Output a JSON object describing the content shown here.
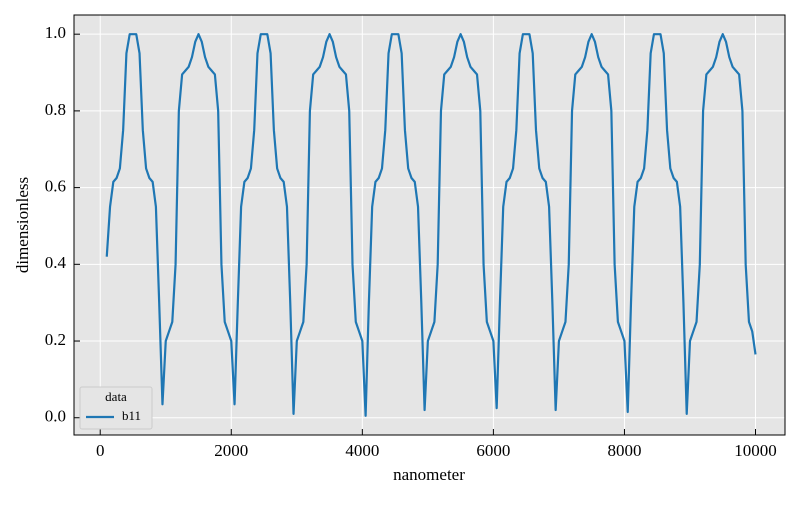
{
  "chart_data": {
    "type": "line",
    "xlabel": "nanometer",
    "ylabel": "dimensionless",
    "x": [
      100,
      150,
      200,
      250,
      300,
      350,
      400,
      450,
      500,
      550,
      600,
      650,
      700,
      750,
      800,
      850,
      900,
      950,
      1000,
      1050,
      1100,
      1150,
      1200,
      1250,
      1300,
      1350,
      1400,
      1450,
      1500,
      1550,
      1600,
      1650,
      1700,
      1750,
      1800,
      1850,
      1900,
      1950,
      2000,
      2050,
      2100,
      2150,
      2200,
      2250,
      2300,
      2350,
      2400,
      2450,
      2500,
      2550,
      2600,
      2650,
      2700,
      2750,
      2800,
      2850,
      2900,
      2950,
      3000,
      3050,
      3100,
      3150,
      3200,
      3250,
      3300,
      3350,
      3400,
      3450,
      3500,
      3550,
      3600,
      3650,
      3700,
      3750,
      3800,
      3850,
      3900,
      3950,
      4000,
      4050,
      4100,
      4150,
      4200,
      4250,
      4300,
      4350,
      4400,
      4450,
      4500,
      4550,
      4600,
      4650,
      4700,
      4750,
      4800,
      4850,
      4900,
      4950,
      5000,
      5050,
      5100,
      5150,
      5200,
      5250,
      5300,
      5350,
      5400,
      5450,
      5500,
      5550,
      5600,
      5650,
      5700,
      5750,
      5800,
      5850,
      5900,
      5950,
      6000,
      6050,
      6100,
      6150,
      6200,
      6250,
      6300,
      6350,
      6400,
      6450,
      6500,
      6550,
      6600,
      6650,
      6700,
      6750,
      6800,
      6850,
      6900,
      6950,
      7000,
      7050,
      7100,
      7150,
      7200,
      7250,
      7300,
      7350,
      7400,
      7450,
      7500,
      7550,
      7600,
      7650,
      7700,
      7750,
      7800,
      7850,
      7900,
      7950,
      8000,
      8050,
      8100,
      8150,
      8200,
      8250,
      8300,
      8350,
      8400,
      8450,
      8500,
      8550,
      8600,
      8650,
      8700,
      8750,
      8800,
      8850,
      8900,
      8950,
      9000,
      9050,
      9100,
      9150,
      9200,
      9250,
      9300,
      9350,
      9400,
      9450,
      9500,
      9550,
      9600,
      9650,
      9700,
      9750,
      9800,
      9850,
      9900,
      9950,
      10000
    ],
    "series": [
      {
        "name": "b11",
        "color": "#1f77b4",
        "values": [
          0.42,
          0.55,
          0.615,
          0.625,
          0.65,
          0.75,
          0.95,
          1.0,
          1.0,
          1.0,
          0.95,
          0.75,
          0.65,
          0.625,
          0.615,
          0.55,
          0.3,
          0.035,
          0.2,
          0.225,
          0.25,
          0.4,
          0.8,
          0.895,
          0.905,
          0.915,
          0.94,
          0.98,
          1.0,
          0.98,
          0.94,
          0.915,
          0.905,
          0.895,
          0.8,
          0.4,
          0.25,
          0.225,
          0.2,
          0.035,
          0.3,
          0.55,
          0.615,
          0.625,
          0.65,
          0.75,
          0.95,
          1.0,
          1.0,
          1.0,
          0.95,
          0.75,
          0.65,
          0.625,
          0.615,
          0.55,
          0.3,
          0.01,
          0.2,
          0.225,
          0.25,
          0.4,
          0.8,
          0.895,
          0.905,
          0.915,
          0.94,
          0.98,
          1.0,
          0.98,
          0.94,
          0.915,
          0.905,
          0.895,
          0.8,
          0.4,
          0.25,
          0.225,
          0.2,
          0.005,
          0.3,
          0.55,
          0.615,
          0.625,
          0.65,
          0.75,
          0.95,
          1.0,
          1.0,
          1.0,
          0.95,
          0.75,
          0.65,
          0.625,
          0.615,
          0.55,
          0.3,
          0.02,
          0.2,
          0.225,
          0.25,
          0.4,
          0.8,
          0.895,
          0.905,
          0.915,
          0.94,
          0.98,
          1.0,
          0.98,
          0.94,
          0.915,
          0.905,
          0.895,
          0.8,
          0.4,
          0.25,
          0.225,
          0.2,
          0.025,
          0.3,
          0.55,
          0.615,
          0.625,
          0.65,
          0.75,
          0.95,
          1.0,
          1.0,
          1.0,
          0.95,
          0.75,
          0.65,
          0.625,
          0.615,
          0.55,
          0.3,
          0.02,
          0.2,
          0.225,
          0.25,
          0.4,
          0.8,
          0.895,
          0.905,
          0.915,
          0.94,
          0.98,
          1.0,
          0.98,
          0.94,
          0.915,
          0.905,
          0.895,
          0.8,
          0.4,
          0.25,
          0.225,
          0.2,
          0.015,
          0.3,
          0.55,
          0.615,
          0.625,
          0.65,
          0.75,
          0.95,
          1.0,
          1.0,
          1.0,
          0.95,
          0.75,
          0.65,
          0.625,
          0.615,
          0.55,
          0.3,
          0.01,
          0.2,
          0.225,
          0.25,
          0.4,
          0.8,
          0.895,
          0.905,
          0.915,
          0.94,
          0.98,
          1.0,
          0.98,
          0.94,
          0.915,
          0.905,
          0.895,
          0.8,
          0.4,
          0.25,
          0.225,
          0.165
        ]
      }
    ],
    "xlim": [
      -400,
      10450
    ],
    "ylim": [
      -0.045,
      1.05
    ],
    "xticks": [
      0,
      2000,
      4000,
      6000,
      8000,
      10000
    ],
    "yticks": [
      {
        "value": 0,
        "label": "0.0"
      },
      0.2,
      0.4,
      0.6,
      0.8,
      {
        "value": 1,
        "label": "1.0"
      }
    ],
    "grid": true,
    "legend_title": "data",
    "legend_loc": "lower left"
  }
}
